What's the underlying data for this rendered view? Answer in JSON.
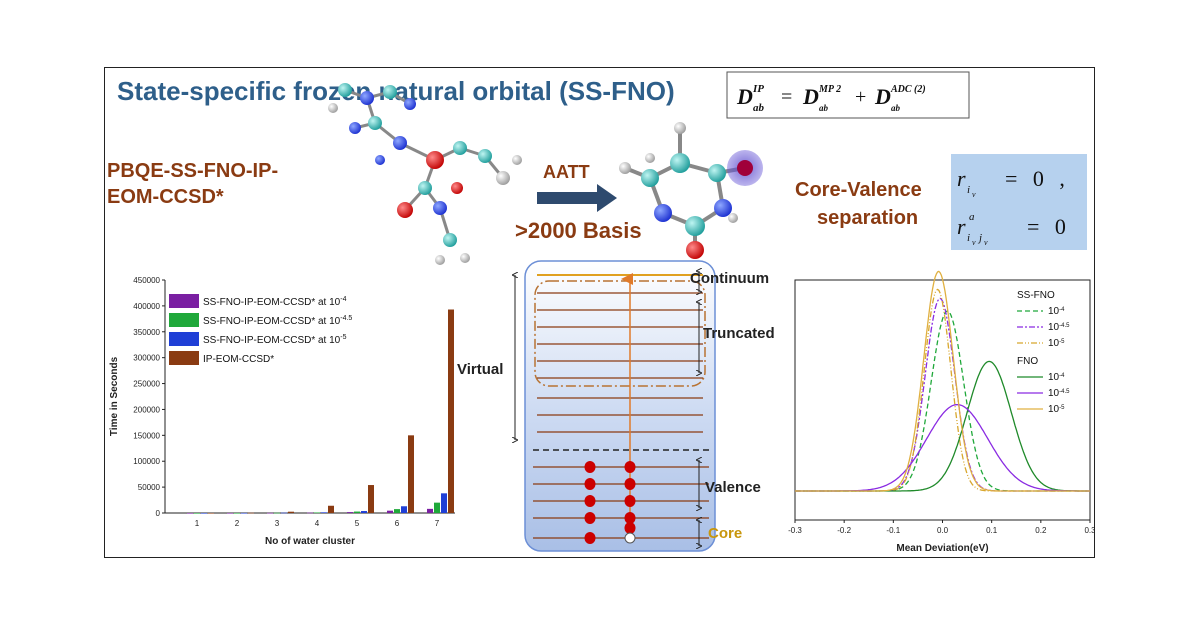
{
  "title": "State-specific frozen natural orbital (SS-FNO)",
  "equation": {
    "lhs": "D",
    "lhs_sup": "IP",
    "lhs_sub": "ab",
    "eq": "=",
    "t1": "D",
    "t1_sup": "MP 2",
    "t1_sub": "ab",
    "plus": "+",
    "t2": "D",
    "t2_sup": "ADC (2)",
    "t2_sub": "ab"
  },
  "method_label": [
    "PBQE-SS-FNO-IP-",
    "EOM-CCSD*"
  ],
  "aatt_label": "AATT",
  "basis_label": ">2000 Basis",
  "core_valence_label": [
    "Core-Valence",
    "separation"
  ],
  "cv_equations": {
    "r1": "r",
    "r1_sub": "i",
    "r1_subsub": "v",
    "r1_rhs": "= 0 ,",
    "r2": "r",
    "r2_sup": "a",
    "r2_sub": "i",
    "r2_subsub1": "v",
    "r2_sub2": "j",
    "r2_subsub2": "v",
    "r2_rhs": "= 0",
    "box_color": "#b6d1ee"
  },
  "orbital_diagram": {
    "labels": {
      "continuum": "Continuum",
      "truncated": "Truncated",
      "virtual": "Virtual",
      "valence": "Valence",
      "core": "Core"
    },
    "colors": {
      "level": "#8a3b12",
      "electron": "#cc0000",
      "arrow": "#e07a2a",
      "core_label": "#c8960c"
    }
  },
  "chart_data": [
    {
      "type": "bar",
      "xlabel": "No of water cluster",
      "ylabel": "Time in Seconds",
      "categories": [
        "1",
        "2",
        "3",
        "4",
        "5",
        "6",
        "7"
      ],
      "ylim": [
        0,
        450000
      ],
      "yticks": [
        "0",
        "50000",
        "100000",
        "150000",
        "200000",
        "250000",
        "300000",
        "350000",
        "400000",
        "450000"
      ],
      "legend_position": "top-left",
      "series": [
        {
          "name": "SS-FNO-IP-EOM-CCSD* at 10",
          "sup": "-4",
          "color": "#7a1fa2",
          "values": [
            20,
            80,
            300,
            700,
            1800,
            4500,
            8000
          ]
        },
        {
          "name": "SS-FNO-IP-EOM-CCSD* at 10",
          "sup": "-4.5",
          "color": "#1fa83a",
          "values": [
            30,
            120,
            450,
            1000,
            2800,
            7500,
            20000
          ]
        },
        {
          "name": "SS-FNO-IP-EOM-CCSD* at 10",
          "sup": "-5",
          "color": "#1f3fd6",
          "values": [
            40,
            150,
            600,
            1300,
            3800,
            13000,
            38000
          ]
        },
        {
          "name": "IP-EOM-CCSD*",
          "sup": "",
          "color": "#8a3b12",
          "values": [
            100,
            500,
            2500,
            14000,
            54000,
            150000,
            393000
          ]
        }
      ]
    },
    {
      "type": "line",
      "xlabel": "Mean Deviation(eV)",
      "xlim": [
        -0.3,
        0.3
      ],
      "xticks": [
        "-0.3",
        "-0.2",
        "-0.1",
        "0.0",
        "0.1",
        "0.2",
        "0.3"
      ],
      "legend_position": "top-right",
      "legend_groups": [
        "SS-FNO",
        "FNO"
      ],
      "series": [
        {
          "group": "SS-FNO",
          "base": "10",
          "sup": "-4",
          "color": "#1fa83a",
          "dash": "5,3",
          "mu": 0.01,
          "sigma": 0.033,
          "amp": 1.0
        },
        {
          "group": "SS-FNO",
          "base": "10",
          "sup": "-4.5",
          "color": "#8a2be2",
          "dash": "6,2,2,2",
          "mu": -0.005,
          "sigma": 0.03,
          "amp": 1.07
        },
        {
          "group": "SS-FNO",
          "base": "10",
          "sup": "-5",
          "color": "#d8a72e",
          "dash": "6,2,1,2,1,2",
          "mu": -0.01,
          "sigma": 0.027,
          "amp": 1.12
        },
        {
          "group": "FNO",
          "base": "10",
          "sup": "-4",
          "color": "#1f8a2a",
          "dash": "",
          "mu": 0.095,
          "sigma": 0.045,
          "amp": 0.72
        },
        {
          "group": "FNO",
          "base": "10",
          "sup": "-4.5",
          "color": "#8a2be2",
          "dash": "",
          "mu": 0.03,
          "sigma": 0.062,
          "amp": 0.48
        },
        {
          "group": "FNO",
          "base": "10",
          "sup": "-5",
          "color": "#e0b040",
          "dash": "",
          "mu": -0.008,
          "sigma": 0.03,
          "amp": 1.22
        }
      ]
    }
  ]
}
